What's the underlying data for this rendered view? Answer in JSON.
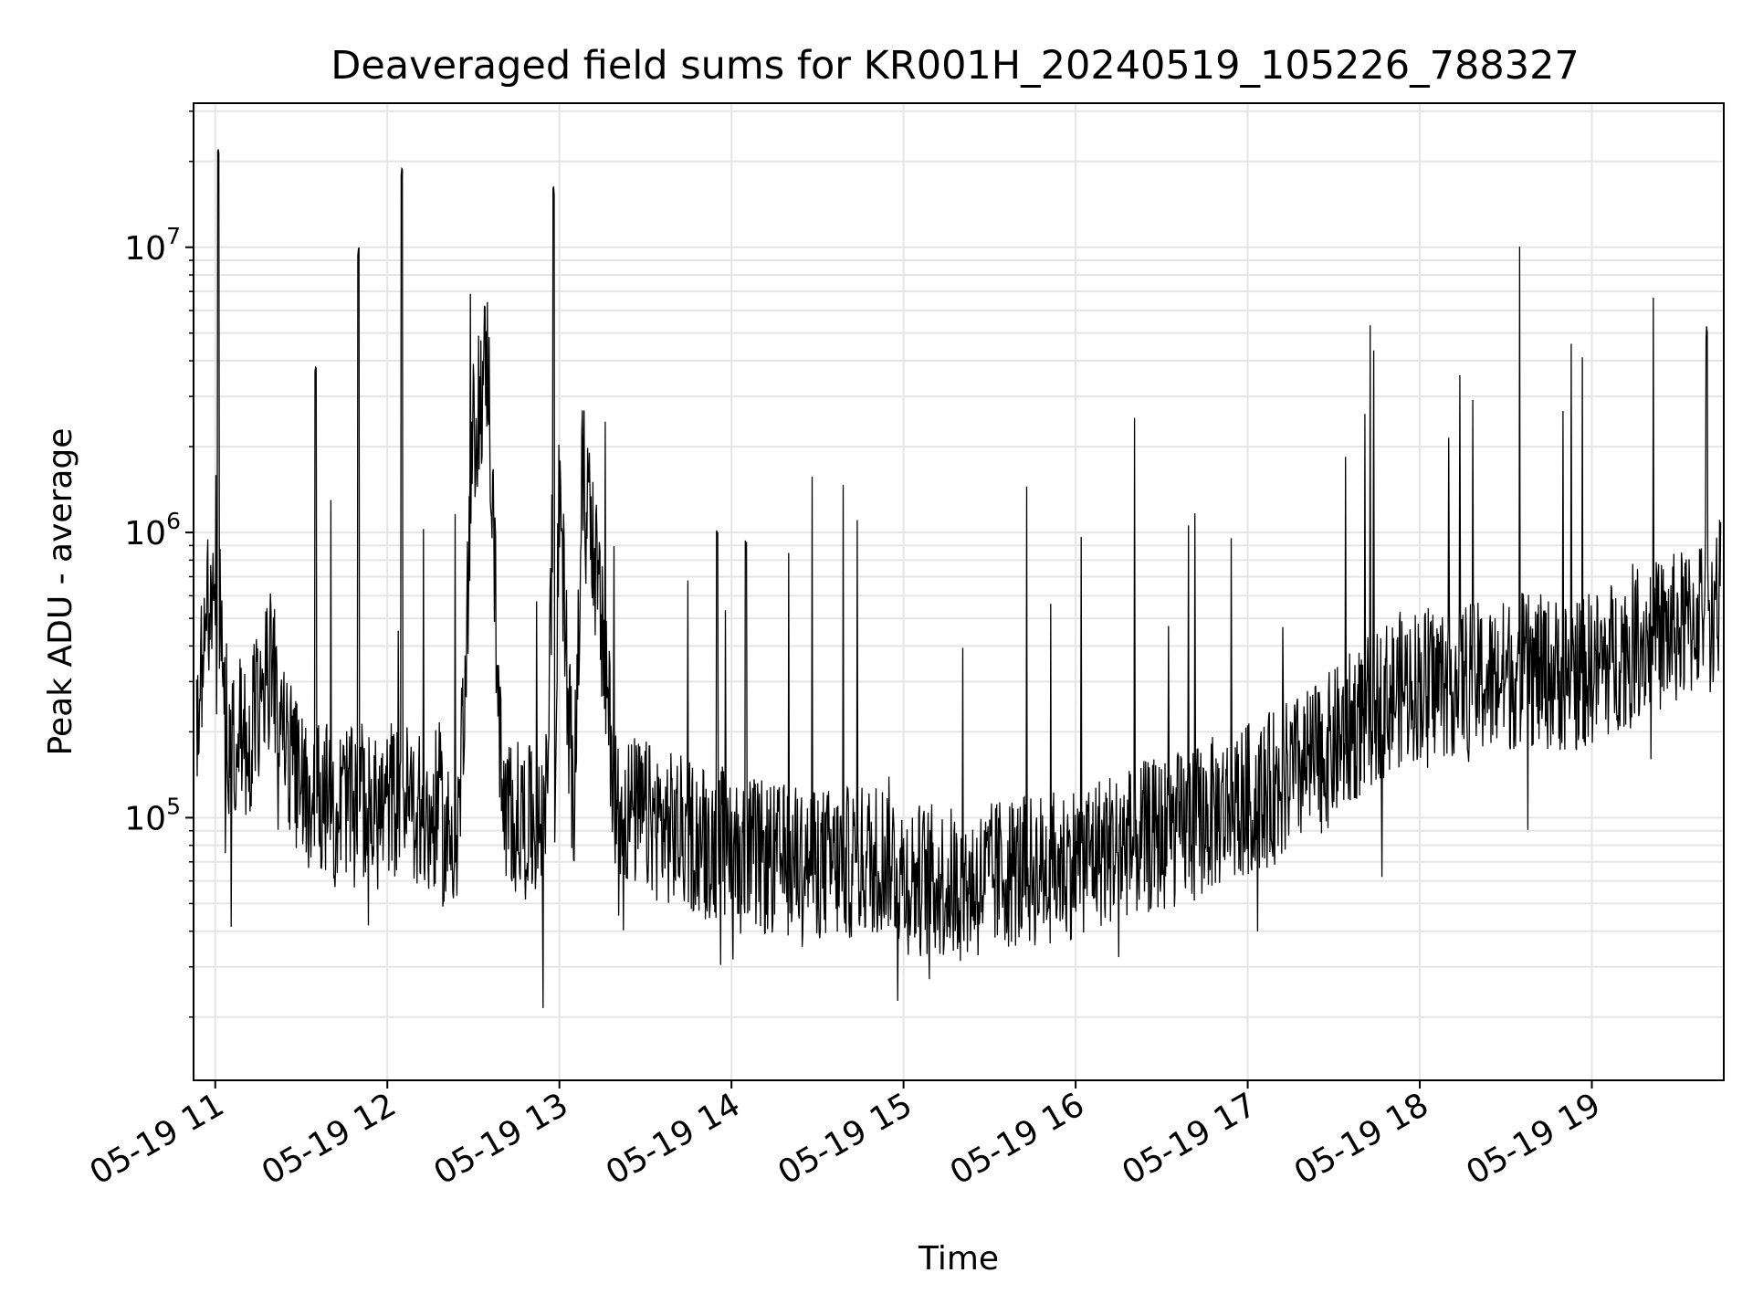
{
  "chart_data": {
    "type": "line",
    "title": "Deaveraged field sums for KR001H_20240519_105226_788327",
    "xlabel": "Time",
    "ylabel": "Peak ADU - average",
    "x_scale": "time",
    "y_scale": "log",
    "xlim": [
      "2024-05-19 10:52:26",
      "2024-05-19 19:46:00"
    ],
    "ylim": [
      12000,
      32000000
    ],
    "grid": true,
    "legend": "none",
    "line_color": "#000000",
    "grid_color": "#e5e5e5",
    "x_ticks": [
      {
        "value": "2024-05-19 11:00",
        "label": "05-19 11"
      },
      {
        "value": "2024-05-19 12:00",
        "label": "05-19 12"
      },
      {
        "value": "2024-05-19 13:00",
        "label": "05-19 13"
      },
      {
        "value": "2024-05-19 14:00",
        "label": "05-19 14"
      },
      {
        "value": "2024-05-19 15:00",
        "label": "05-19 15"
      },
      {
        "value": "2024-05-19 16:00",
        "label": "05-19 16"
      },
      {
        "value": "2024-05-19 17:00",
        "label": "05-19 17"
      },
      {
        "value": "2024-05-19 18:00",
        "label": "05-19 18"
      },
      {
        "value": "2024-05-19 19:00",
        "label": "05-19 19"
      }
    ],
    "y_ticks": [
      {
        "value": 100000,
        "base": "10",
        "exp": "5"
      },
      {
        "value": 1000000,
        "base": "10",
        "exp": "6"
      },
      {
        "value": 10000000,
        "base": "10",
        "exp": "7"
      }
    ],
    "series": [
      {
        "x": [
          "2024-05-19 10:53",
          "2024-05-19 10:56",
          "2024-05-19 10:59",
          "2024-05-19 11:01",
          "2024-05-19 11:03",
          "2024-05-19 11:05",
          "2024-05-19 11:08",
          "2024-05-19 11:11",
          "2024-05-19 11:15",
          "2024-05-19 11:20",
          "2024-05-19 11:25",
          "2024-05-19 11:27",
          "2024-05-19 11:30",
          "2024-05-19 11:35",
          "2024-05-19 11:40",
          "2024-05-19 11:42",
          "2024-05-19 11:45",
          "2024-05-19 11:50",
          "2024-05-19 11:55",
          "2024-05-19 12:00",
          "2024-05-19 12:01",
          "2024-05-19 12:05",
          "2024-05-19 12:10",
          "2024-05-19 12:15",
          "2024-05-19 12:18",
          "2024-05-19 12:20",
          "2024-05-19 12:25",
          "2024-05-19 12:30",
          "2024-05-19 12:35",
          "2024-05-19 12:40",
          "2024-05-19 12:45",
          "2024-05-19 12:50",
          "2024-05-19 12:52",
          "2024-05-19 12:55",
          "2024-05-19 12:58",
          "2024-05-19 13:00",
          "2024-05-19 13:05",
          "2024-05-19 13:08",
          "2024-05-19 13:10",
          "2024-05-19 13:20",
          "2024-05-19 13:30",
          "2024-05-19 13:40",
          "2024-05-19 13:50",
          "2024-05-19 13:55",
          "2024-05-19 14:00",
          "2024-05-19 14:02",
          "2024-05-19 14:05",
          "2024-05-19 14:15",
          "2024-05-19 14:25",
          "2024-05-19 14:35",
          "2024-05-19 14:45",
          "2024-05-19 14:55",
          "2024-05-19 15:00",
          "2024-05-19 15:10",
          "2024-05-19 15:20",
          "2024-05-19 15:30",
          "2024-05-19 15:35",
          "2024-05-19 15:45",
          "2024-05-19 15:55",
          "2024-05-19 16:05",
          "2024-05-19 16:15",
          "2024-05-19 16:25",
          "2024-05-19 16:35",
          "2024-05-19 16:45",
          "2024-05-19 16:55",
          "2024-05-19 17:05",
          "2024-05-19 17:15",
          "2024-05-19 17:25",
          "2024-05-19 17:35",
          "2024-05-19 17:45",
          "2024-05-19 17:55",
          "2024-05-19 18:05",
          "2024-05-19 18:15",
          "2024-05-19 18:25",
          "2024-05-19 18:35",
          "2024-05-19 18:45",
          "2024-05-19 18:55",
          "2024-05-19 19:05",
          "2024-05-19 19:15",
          "2024-05-19 19:25",
          "2024-05-19 19:35",
          "2024-05-19 19:40",
          "2024-05-19 19:44"
        ],
        "y": [
          200000,
          450000,
          600000,
          23000000,
          300000,
          150000,
          220000,
          180000,
          250000,
          350000,
          170000,
          150000,
          130000,
          3900000,
          110000,
          100000,
          120000,
          10000000,
          100000,
          110000,
          120000,
          19000000,
          110000,
          90000,
          120000,
          80000,
          100000,
          2200000,
          4200000,
          110000,
          100000,
          95000,
          90000,
          80000,
          17000000,
          1450000,
          95000,
          1500000,
          1500000,
          110000,
          100000,
          90000,
          85000,
          1100000,
          80000,
          75000,
          950000,
          70000,
          72000,
          68000,
          70000,
          75000,
          62000,
          60000,
          58000,
          60000,
          65000,
          65000,
          68000,
          75000,
          80000,
          85000,
          90000,
          100000,
          110000,
          120000,
          140000,
          160000,
          200000,
          250000,
          290000,
          300000,
          310000,
          300000,
          330000,
          320000,
          320000,
          350000,
          420000,
          440000,
          480000,
          5300000,
          600000
        ],
        "y_note": "sparse envelope"
      }
    ]
  }
}
